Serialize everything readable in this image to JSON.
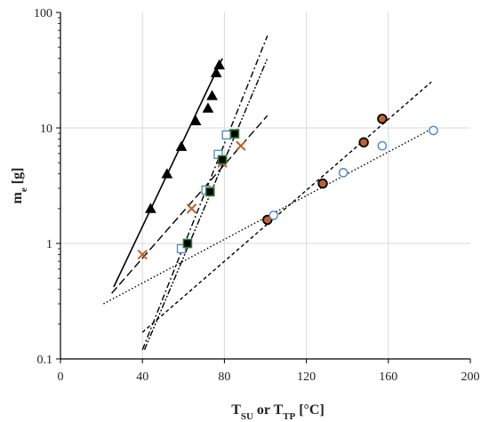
{
  "chart_data": {
    "type": "scatter",
    "title": "",
    "xlabel": {
      "parts": [
        {
          "text": "T",
          "sub": false
        },
        {
          "text": "SU",
          "sub": true
        },
        {
          "text": " or ",
          "sub": false
        },
        {
          "text": "T",
          "sub": false
        },
        {
          "text": "TP",
          "sub": true
        },
        {
          "text": " [°C]",
          "sub": false
        }
      ]
    },
    "ylabel": {
      "parts": [
        {
          "text": "m",
          "sub": false
        },
        {
          "text": "e",
          "sub": true
        },
        {
          "text": " [g]",
          "sub": false
        }
      ]
    },
    "xlim": [
      0,
      200
    ],
    "ylim": [
      0.1,
      100
    ],
    "yscale": "log",
    "grid": true,
    "legend": "none",
    "xticks": [
      "0",
      "40",
      "80",
      "120",
      "160",
      "200"
    ],
    "yticks": [
      "0.1",
      "1",
      "10",
      "100"
    ],
    "series": [
      {
        "marker": "triangle",
        "color": "#000000",
        "fill": "#000000",
        "points": [
          [
            44,
            2.0
          ],
          [
            52,
            4.0
          ],
          [
            59,
            6.9
          ],
          [
            66,
            11.5
          ],
          [
            72,
            14.8
          ],
          [
            74,
            19.0
          ],
          [
            76,
            30.0
          ],
          [
            77.5,
            35.0
          ]
        ]
      },
      {
        "marker": "cross",
        "color": "#c0622b",
        "fill": "none",
        "points": [
          [
            40,
            0.8
          ],
          [
            64,
            2.0
          ],
          [
            73,
            2.9
          ],
          [
            79,
            5.0
          ],
          [
            88,
            7.0
          ]
        ]
      },
      {
        "marker": "square-open",
        "color": "#4a86c6",
        "fill": "#ffffff",
        "points": [
          [
            59,
            0.9
          ],
          [
            71,
            2.9
          ],
          [
            77,
            5.9
          ],
          [
            81,
            8.7
          ]
        ]
      },
      {
        "marker": "square-filled",
        "color": "#2e7d32",
        "fill": "#000000",
        "points": [
          [
            62,
            1.0
          ],
          [
            73,
            2.8
          ],
          [
            79,
            5.3
          ],
          [
            85,
            8.9
          ]
        ]
      },
      {
        "marker": "circle-filled",
        "color": "#000000",
        "fill": "#c0622b",
        "points": [
          [
            101,
            1.6
          ],
          [
            128,
            3.3
          ],
          [
            148,
            7.5
          ],
          [
            157,
            12.0
          ]
        ]
      },
      {
        "marker": "circle-open",
        "color": "#4a86c6",
        "fill": "#ffffff",
        "points": [
          [
            104,
            1.75
          ],
          [
            138,
            4.1
          ],
          [
            157,
            7.0
          ],
          [
            182,
            9.5
          ]
        ]
      }
    ],
    "fit_lines": [
      {
        "style": "solid",
        "from": [
          26,
          0.42
        ],
        "to": [
          79,
          40.0
        ]
      },
      {
        "style": "dash-long",
        "from": [
          25,
          0.37
        ],
        "to": [
          101,
          12.8
        ]
      },
      {
        "style": "dash-dot",
        "from": [
          40,
          0.12
        ],
        "to": [
          101,
          63.0
        ]
      },
      {
        "style": "dash-dot-dot",
        "from": [
          41,
          0.12
        ],
        "to": [
          101,
          40.0
        ]
      },
      {
        "style": "dash-short",
        "from": [
          40,
          0.17
        ],
        "to": [
          181,
          25.0
        ]
      },
      {
        "style": "dotted",
        "from": [
          21,
          0.3
        ],
        "to": [
          182,
          10.0
        ]
      }
    ]
  }
}
